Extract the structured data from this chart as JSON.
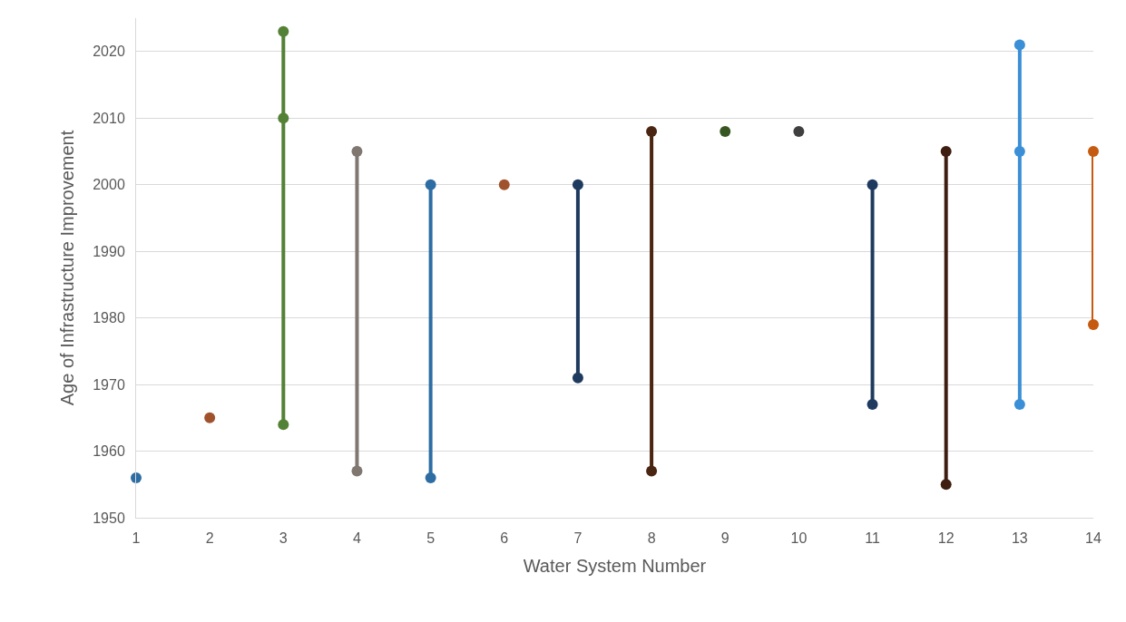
{
  "chart_data": {
    "type": "line",
    "xlabel": "Water System Number",
    "ylabel": "Age of Infrastructure Improvement",
    "xlim": [
      1,
      14
    ],
    "xticks": [
      1,
      2,
      3,
      4,
      5,
      6,
      7,
      8,
      9,
      10,
      11,
      12,
      13,
      14
    ],
    "ylim": [
      1950,
      2025
    ],
    "yticks": [
      1950,
      1960,
      1970,
      1980,
      1990,
      2000,
      2010,
      2020
    ],
    "grid": "y",
    "marker": "circle",
    "line_style": "solid",
    "series": [
      {
        "color": "#2e6da4",
        "x": [
          1
        ],
        "values": [
          1956
        ]
      },
      {
        "color": "#a0522d",
        "x": [
          2
        ],
        "values": [
          1965
        ]
      },
      {
        "color": "#538135",
        "x": [
          3,
          3,
          3
        ],
        "values": [
          2023,
          2010,
          1964
        ]
      },
      {
        "color": "#7f7770",
        "x": [
          4,
          4
        ],
        "values": [
          2005,
          1957
        ]
      },
      {
        "color": "#2e6da4",
        "x": [
          5,
          5
        ],
        "values": [
          2000,
          1956
        ]
      },
      {
        "color": "#a0522d",
        "x": [
          6
        ],
        "values": [
          2000
        ]
      },
      {
        "color": "#1f3a5f",
        "x": [
          7,
          7
        ],
        "values": [
          2000,
          1971
        ]
      },
      {
        "color": "#4a2511",
        "x": [
          8,
          8
        ],
        "values": [
          2008,
          1957
        ]
      },
      {
        "color": "#375623",
        "x": [
          9
        ],
        "values": [
          2008
        ]
      },
      {
        "color": "#404040",
        "x": [
          10
        ],
        "values": [
          2008
        ]
      },
      {
        "color": "#1f3a5f",
        "x": [
          11,
          11
        ],
        "values": [
          2000,
          1967
        ]
      },
      {
        "color": "#3e1e10",
        "x": [
          12,
          12
        ],
        "values": [
          2005,
          1955
        ]
      },
      {
        "color": "#3a8fd6",
        "x": [
          13,
          13,
          13
        ],
        "values": [
          2021,
          2005,
          1967
        ]
      },
      {
        "color": "#c55a11",
        "x": [
          14,
          14
        ],
        "values": [
          2005,
          1979
        ]
      }
    ]
  }
}
